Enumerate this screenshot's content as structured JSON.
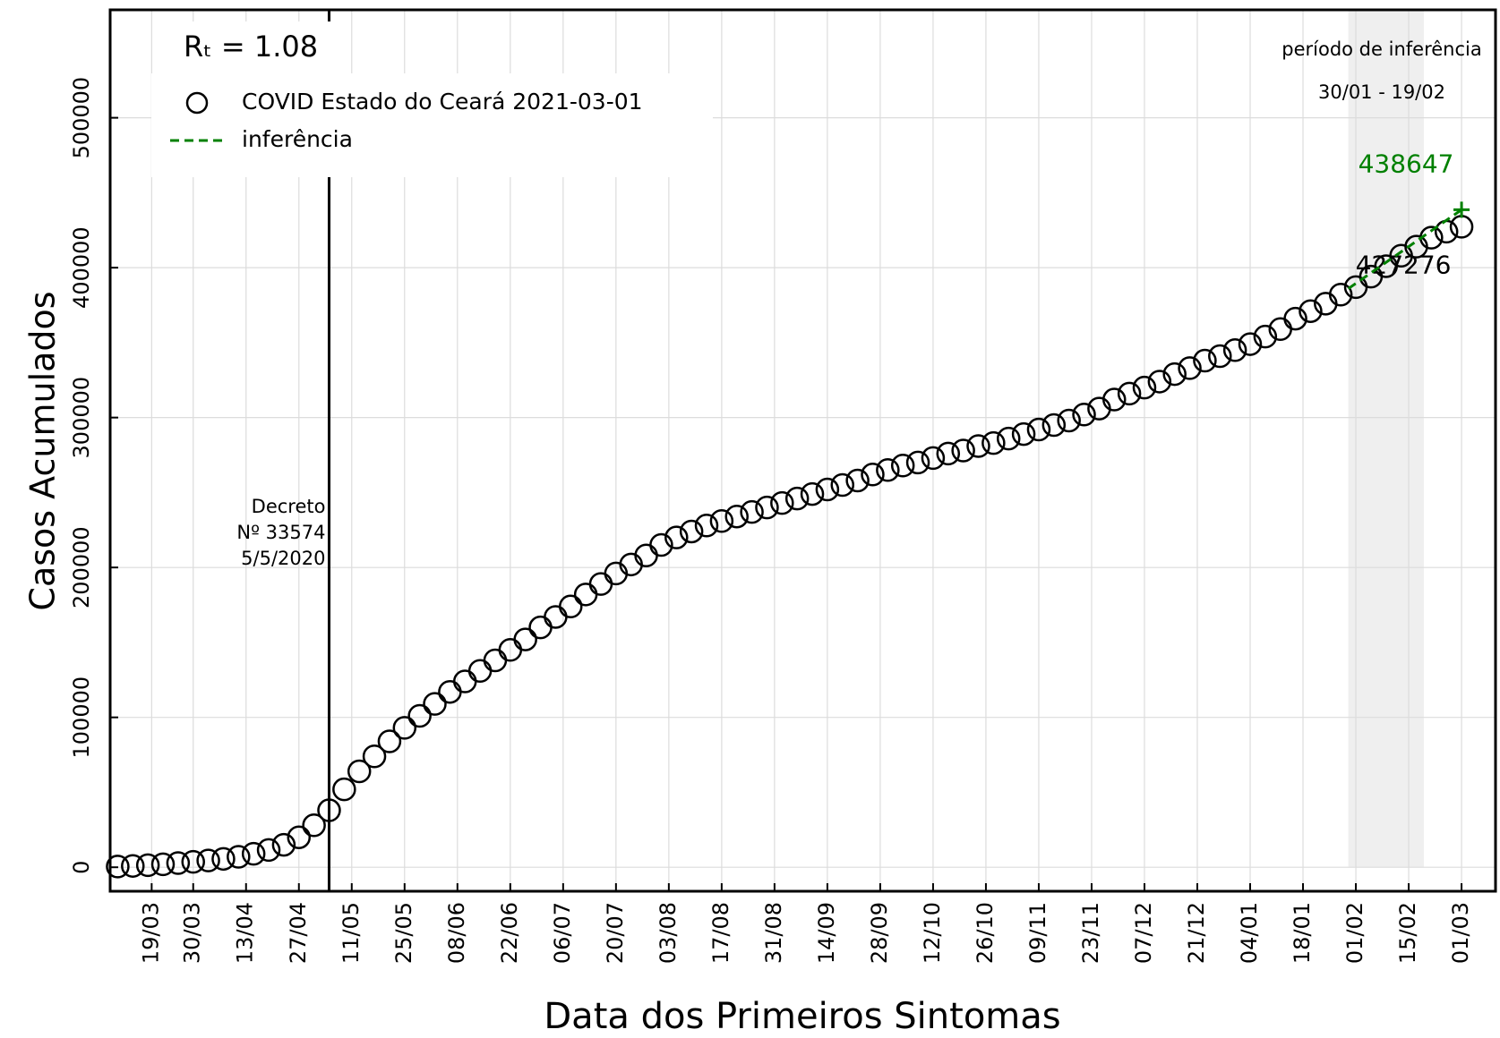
{
  "chart_data": {
    "type": "scatter",
    "xlabel": "Data dos Primeiros Sintomas",
    "ylabel": "Casos Acumulados",
    "x": [
      "10/03",
      "14/03",
      "18/03",
      "22/03",
      "26/03",
      "30/03",
      "03/04",
      "07/04",
      "11/04",
      "15/04",
      "19/04",
      "23/04",
      "27/04",
      "01/05",
      "05/05",
      "09/05",
      "13/05",
      "17/05",
      "21/05",
      "25/05",
      "29/05",
      "02/06",
      "06/06",
      "10/06",
      "14/06",
      "18/06",
      "22/06",
      "26/06",
      "30/06",
      "04/07",
      "08/07",
      "12/07",
      "16/07",
      "20/07",
      "24/07",
      "28/07",
      "01/08",
      "05/08",
      "09/08",
      "13/08",
      "17/08",
      "21/08",
      "25/08",
      "29/08",
      "02/09",
      "06/09",
      "10/09",
      "14/09",
      "18/09",
      "22/09",
      "26/09",
      "30/09",
      "04/10",
      "08/10",
      "12/10",
      "16/10",
      "20/10",
      "24/10",
      "28/10",
      "01/11",
      "05/11",
      "09/11",
      "13/11",
      "17/11",
      "21/11",
      "25/11",
      "29/11",
      "03/12",
      "07/12",
      "11/12",
      "15/12",
      "19/12",
      "23/12",
      "27/12",
      "31/12",
      "04/01",
      "08/01",
      "12/01",
      "16/01",
      "20/01",
      "24/01",
      "28/01",
      "01/02",
      "05/02",
      "09/02",
      "13/02",
      "17/02",
      "21/02",
      "25/02",
      "01/03"
    ],
    "series": [
      {
        "name": "COVID Estado do Ceará 2021-03-01",
        "color": "#000000",
        "marker": "circle",
        "values": [
          500,
          900,
          1400,
          2000,
          2800,
          3600,
          4500,
          5600,
          7000,
          9000,
          11500,
          15000,
          20000,
          28000,
          38000,
          52000,
          64000,
          74000,
          84000,
          93000,
          101000,
          109000,
          117000,
          124000,
          131000,
          138000,
          145000,
          152000,
          160000,
          167000,
          174000,
          182000,
          189000,
          196000,
          202000,
          208000,
          215000,
          220000,
          224000,
          228000,
          231000,
          234000,
          237000,
          240000,
          243000,
          246000,
          249000,
          252000,
          255000,
          258000,
          262000,
          265000,
          268000,
          270000,
          273000,
          276000,
          278000,
          281000,
          283000,
          286000,
          289000,
          292000,
          295000,
          298000,
          302000,
          306000,
          312000,
          316000,
          320000,
          324000,
          329000,
          333000,
          338000,
          341000,
          345000,
          349000,
          354000,
          359000,
          366000,
          371000,
          376000,
          382000,
          387000,
          394000,
          401000,
          408000,
          414000,
          420000,
          424000,
          427276
        ]
      },
      {
        "name": "inferência",
        "color": "#008000",
        "style": "dashed",
        "x": [
          "30/01",
          "01/03"
        ],
        "values": [
          386000,
          438647
        ]
      }
    ],
    "xlim": [
      "08/03",
      "10/03"
    ],
    "ylim": [
      -16000,
      572000
    ],
    "xticks": [
      "19/03",
      "30/03",
      "13/04",
      "27/04",
      "11/05",
      "25/05",
      "08/06",
      "22/06",
      "06/07",
      "20/07",
      "03/08",
      "17/08",
      "31/08",
      "14/09",
      "28/09",
      "12/10",
      "26/10",
      "09/11",
      "23/11",
      "07/12",
      "21/12",
      "04/01",
      "18/01",
      "01/02",
      "15/02",
      "01/03"
    ],
    "yticks": [
      0,
      100000,
      200000,
      300000,
      400000,
      500000
    ],
    "grid": true,
    "legend": "upper left",
    "annotations": {
      "rt": "Rₜ = 1.08",
      "decree": {
        "x": "05/05",
        "lines": [
          "Decreto",
          "Nº 33574",
          "5/5/2020"
        ]
      },
      "inference_period": {
        "span": [
          "30/01",
          "19/02"
        ],
        "title": "período de inferência",
        "range_label": "30/01 - 19/02"
      }
    }
  }
}
